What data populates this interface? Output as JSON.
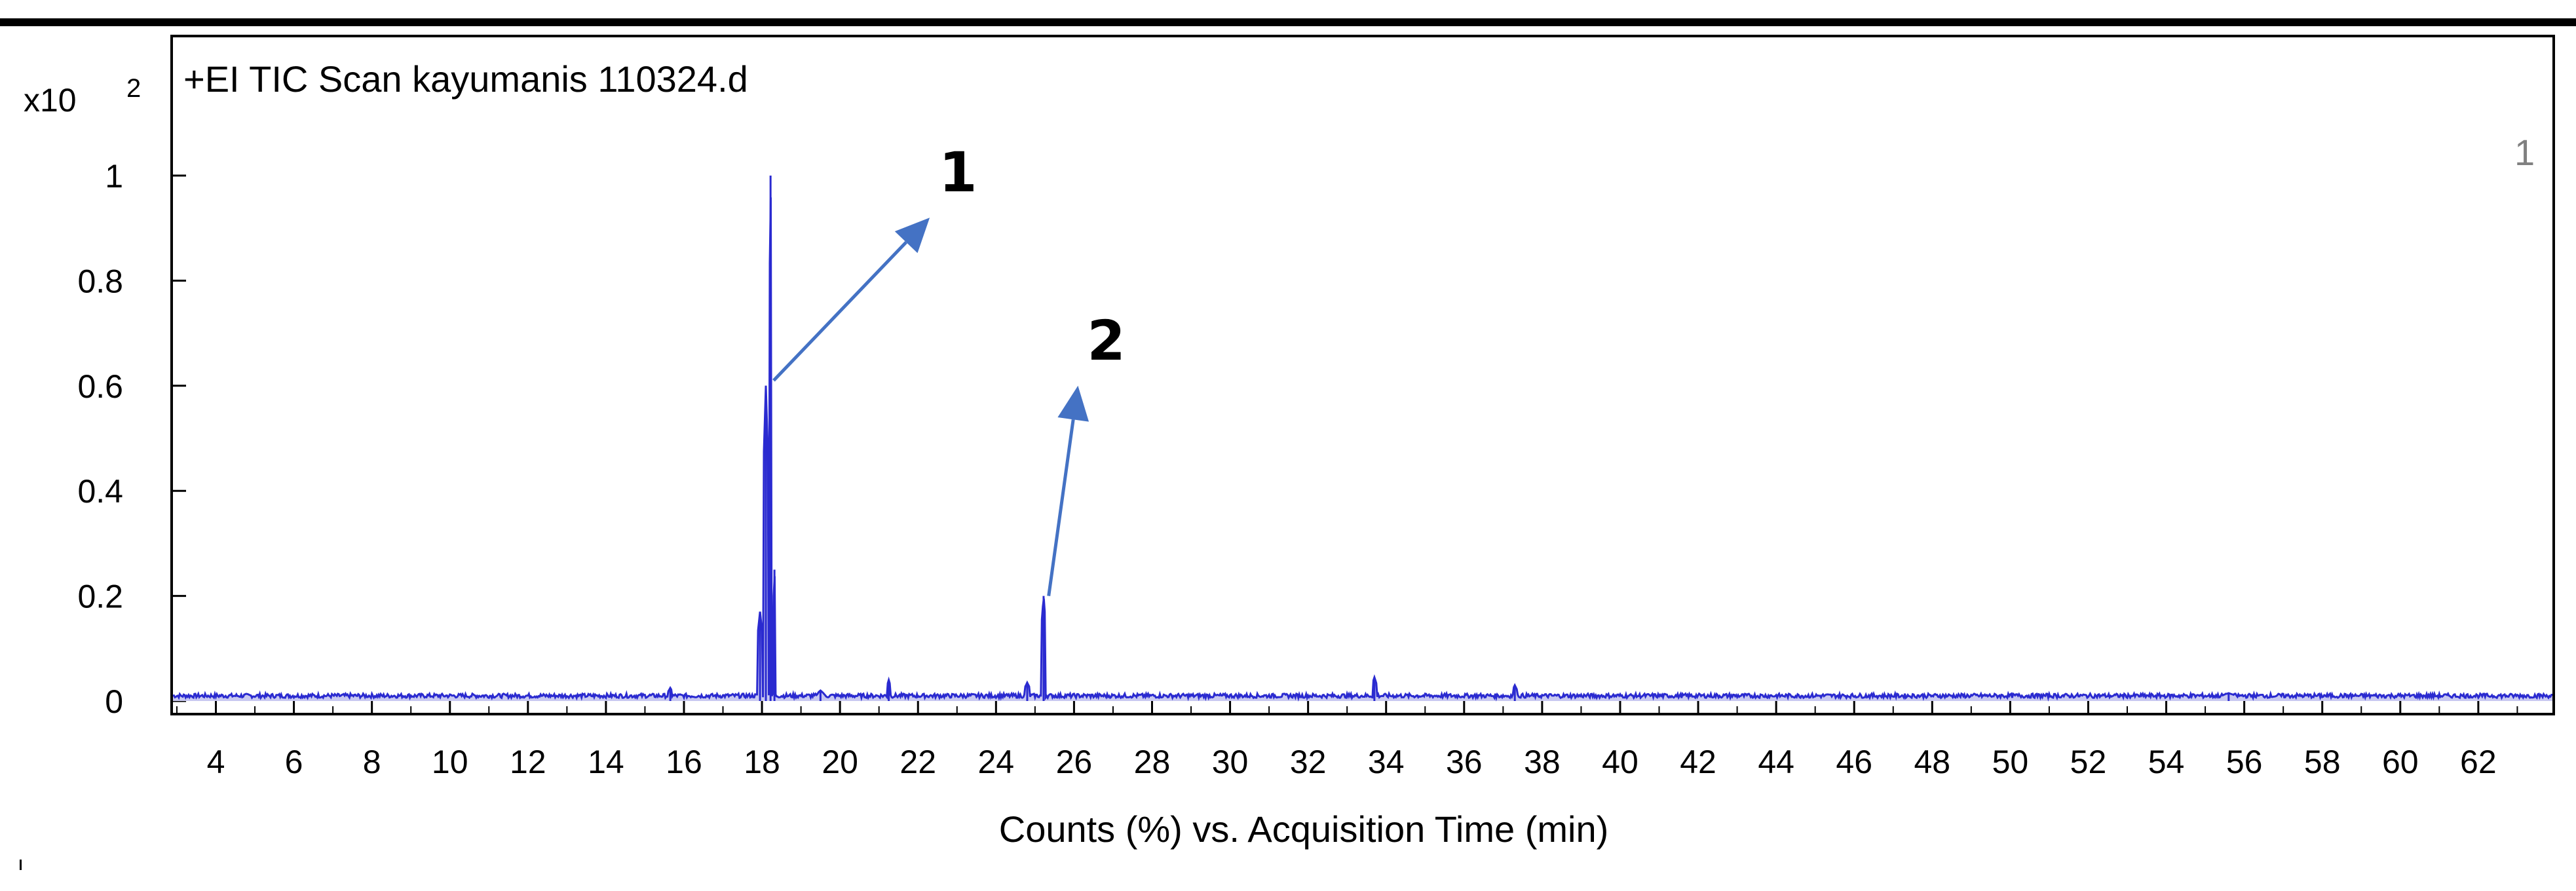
{
  "chart_data": {
    "type": "line",
    "title": "+EI TIC Scan kayumanis 110324.d",
    "xlabel": "Counts (%) vs. Acquisition Time (min)",
    "ylabel": "",
    "y_multiplier": {
      "base": "x10",
      "exponent": "2"
    },
    "corner_label": "1",
    "xlim": [
      2.9,
      63.9
    ],
    "ylim": [
      0,
      1.0
    ],
    "x_ticks": [
      4,
      6,
      8,
      10,
      12,
      14,
      16,
      18,
      20,
      22,
      24,
      26,
      28,
      30,
      32,
      34,
      36,
      38,
      40,
      42,
      44,
      46,
      48,
      50,
      52,
      54,
      56,
      58,
      60,
      62
    ],
    "x_tick_labels": [
      "4",
      "6",
      "8",
      "10",
      "12",
      "14",
      "16",
      "18",
      "20",
      "22",
      "24",
      "26",
      "28",
      "30",
      "32",
      "34",
      "36",
      "38",
      "40",
      "42",
      "44",
      "46",
      "48",
      "50",
      "52",
      "54",
      "56",
      "58",
      "60",
      "62"
    ],
    "y_ticks": [
      0,
      0.2,
      0.4,
      0.6,
      0.8,
      1
    ],
    "y_tick_labels": [
      "0",
      "0.2",
      "0.4",
      "0.6",
      "0.8",
      "1"
    ],
    "grid": false,
    "baseline": 0.01,
    "series": [
      {
        "color": "#2a2ad0",
        "fill": "#c8c8f0",
        "peaks": [
          {
            "x": 15.65,
            "y": 0.025,
            "w": 0.1
          },
          {
            "x": 17.95,
            "y": 0.17,
            "w": 0.12
          },
          {
            "x": 18.1,
            "y": 0.6,
            "w": 0.12
          },
          {
            "x": 18.22,
            "y": 1.0,
            "w": 0.06
          },
          {
            "x": 18.32,
            "y": 0.25,
            "w": 0.05
          },
          {
            "x": 19.5,
            "y": 0.02,
            "w": 0.15
          },
          {
            "x": 21.25,
            "y": 0.04,
            "w": 0.08
          },
          {
            "x": 24.8,
            "y": 0.035,
            "w": 0.12
          },
          {
            "x": 25.22,
            "y": 0.2,
            "w": 0.1
          },
          {
            "x": 33.7,
            "y": 0.045,
            "w": 0.1
          },
          {
            "x": 37.3,
            "y": 0.03,
            "w": 0.1
          },
          {
            "x": 55.6,
            "y": 0.015,
            "w": 0.3
          }
        ]
      }
    ],
    "annotations": [
      {
        "text": "1",
        "from": [
          18.3,
          0.61
        ],
        "to": [
          22.3,
          0.92
        ]
      },
      {
        "text": "2",
        "from": [
          25.35,
          0.2
        ],
        "to": [
          26.1,
          0.6
        ]
      }
    ]
  }
}
